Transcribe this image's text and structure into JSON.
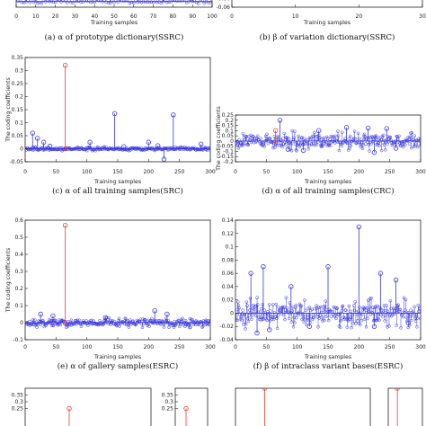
{
  "chart_data": [
    {
      "id": "a",
      "type": "stem",
      "caption": "(a) α of prototype dictionary(SSRC)",
      "xlabel": "Training samples",
      "ylabel": "",
      "xlim": [
        0,
        100
      ],
      "xticks": [
        "0",
        "10",
        "20",
        "30",
        "40",
        "50",
        "60",
        "70",
        "80",
        "90",
        "100"
      ],
      "ylim": [
        -0.02,
        0.1
      ],
      "yticks": [],
      "highlight_color": "#e8403a",
      "series_color": "#3a3adf",
      "stems": [
        [
          23,
          0.08,
          "red"
        ],
        [
          10,
          0.04
        ],
        [
          48,
          0.05
        ],
        [
          75,
          0.05
        ],
        [
          90,
          0.04
        ],
        [
          62,
          0.03
        ],
        [
          5,
          0.02
        ]
      ]
    },
    {
      "id": "b",
      "type": "stem",
      "caption": "(b) β of variation dictionary(SSRC)",
      "xlabel": "Training samples",
      "ylabel": "",
      "xlim": [
        0,
        30
      ],
      "xticks": [
        "0",
        "10",
        "20",
        "30"
      ],
      "ylim": [
        -0.06,
        0.02
      ],
      "yticks": [
        "-0.04",
        "-0.06"
      ],
      "stems": []
    },
    {
      "id": "c",
      "type": "stem",
      "caption": "(c) α of all training samples(SRC)",
      "xlabel": "Training samples",
      "ylabel": "The coding coefficients",
      "xlim": [
        0,
        300
      ],
      "xticks": [
        "0",
        "50",
        "100",
        "150",
        "200",
        "250",
        "300"
      ],
      "ylim": [
        -0.05,
        0.35
      ],
      "yticks": [
        "0.35",
        "0.3",
        "0.25",
        "0.2",
        "0.15",
        "0.1",
        "0.05",
        "0",
        "-0.05"
      ],
      "stems": [
        [
          65,
          0.32,
          "red"
        ],
        [
          145,
          0.135
        ],
        [
          240,
          0.13
        ],
        [
          12,
          0.06
        ],
        [
          20,
          0.04
        ],
        [
          30,
          0.025
        ],
        [
          105,
          0.025
        ],
        [
          200,
          0.025
        ],
        [
          225,
          -0.04
        ],
        [
          215,
          0.012
        ],
        [
          285,
          0.018
        ],
        [
          40,
          0.01
        ],
        [
          160,
          0.008
        ]
      ]
    },
    {
      "id": "d",
      "type": "stem",
      "caption": "(d) α of all training samples(CRC)",
      "xlabel": "Training samples",
      "ylabel": "The coding coefficients",
      "xlim": [
        0,
        300
      ],
      "xticks": [
        "0",
        "50",
        "100",
        "150",
        "200",
        "250",
        "300"
      ],
      "ylim": [
        -0.2,
        0.25
      ],
      "yticks": [
        "0.25",
        "0.2",
        "0.15",
        "0.1",
        "0.05",
        "0",
        "-0.05",
        "-0.1",
        "-0.15",
        "-0.2"
      ],
      "stems": [
        [
          65,
          0.1,
          "red"
        ],
        [
          72,
          0.2
        ],
        [
          180,
          0.13
        ],
        [
          215,
          0.125
        ],
        [
          245,
          0.12
        ],
        [
          135,
          0.1
        ],
        [
          85,
          -0.08
        ],
        [
          110,
          -0.09
        ],
        [
          225,
          -0.11
        ],
        [
          260,
          -0.07
        ]
      ]
    },
    {
      "id": "e",
      "type": "stem",
      "caption": "(e) α of gallery samples(ESRC)",
      "xlabel": "Training samples",
      "ylabel": "The coding coefficients",
      "xlim": [
        0,
        300
      ],
      "xticks": [
        "0",
        "50",
        "100",
        "150",
        "200",
        "250",
        "300"
      ],
      "ylim": [
        -0.1,
        0.6
      ],
      "yticks": [
        "0.6",
        "0.5",
        "0.4",
        "0.3",
        "0.2",
        "0.1",
        "0",
        "-0.1"
      ],
      "stems": [
        [
          65,
          0.57,
          "red"
        ],
        [
          25,
          0.05
        ],
        [
          45,
          0.04
        ],
        [
          210,
          0.07
        ],
        [
          230,
          0.05
        ],
        [
          130,
          0.03
        ]
      ]
    },
    {
      "id": "f",
      "type": "stem",
      "caption": "(f) β of intraclass variant bases(ESRC)",
      "xlabel": "Training samples",
      "ylabel": "",
      "xlim": [
        0,
        300
      ],
      "xticks": [
        "0",
        "50",
        "100",
        "150",
        "200",
        "250",
        "300"
      ],
      "ylim": [
        -0.04,
        0.14
      ],
      "yticks": [
        "0.14",
        "0.12",
        "0.1",
        "0.08",
        "0.06",
        "0.04",
        "0.02",
        "0",
        "-0.02",
        "-0.04"
      ],
      "stems": [
        [
          200,
          0.13
        ],
        [
          25,
          0.06
        ],
        [
          45,
          0.07
        ],
        [
          150,
          0.07
        ],
        [
          235,
          0.06
        ],
        [
          260,
          0.05
        ],
        [
          90,
          0.04
        ],
        [
          35,
          -0.03
        ],
        [
          55,
          -0.025
        ],
        [
          120,
          -0.02
        ],
        [
          225,
          -0.02
        ],
        [
          280,
          -0.015
        ]
      ]
    },
    {
      "id": "g1",
      "type": "stem",
      "caption": "",
      "xlabel": "",
      "ylabel": "",
      "xlim": [
        0,
        100
      ],
      "xticks": [],
      "ylim": [
        0,
        0.4
      ],
      "yticks": [
        "0.35",
        "0.3",
        "0.25"
      ],
      "stems": [
        [
          35,
          0.25,
          "red"
        ]
      ]
    },
    {
      "id": "g2",
      "type": "stem",
      "caption": "",
      "xlabel": "",
      "ylabel": "",
      "xlim": [
        0,
        30
      ],
      "xticks": [],
      "ylim": [
        0,
        0.4
      ],
      "yticks": [
        "0.35",
        "0.3",
        "0.25"
      ],
      "stems": [
        [
          10,
          0.25,
          "red"
        ]
      ]
    },
    {
      "id": "g3",
      "type": "stem",
      "caption": "",
      "xlabel": "",
      "ylabel": "",
      "xlim": [
        0,
        300
      ],
      "xticks": [],
      "ylim": [
        0,
        0.4
      ],
      "yticks": [],
      "stems": [
        [
          65,
          0.4,
          "red"
        ]
      ]
    },
    {
      "id": "g4",
      "type": "stem",
      "caption": "",
      "xlabel": "",
      "ylabel": "",
      "xlim": [
        0,
        30
      ],
      "xticks": [],
      "ylim": [
        0,
        0.4
      ],
      "yticks": [],
      "stems": [
        [
          8,
          0.4,
          "red"
        ]
      ]
    }
  ]
}
